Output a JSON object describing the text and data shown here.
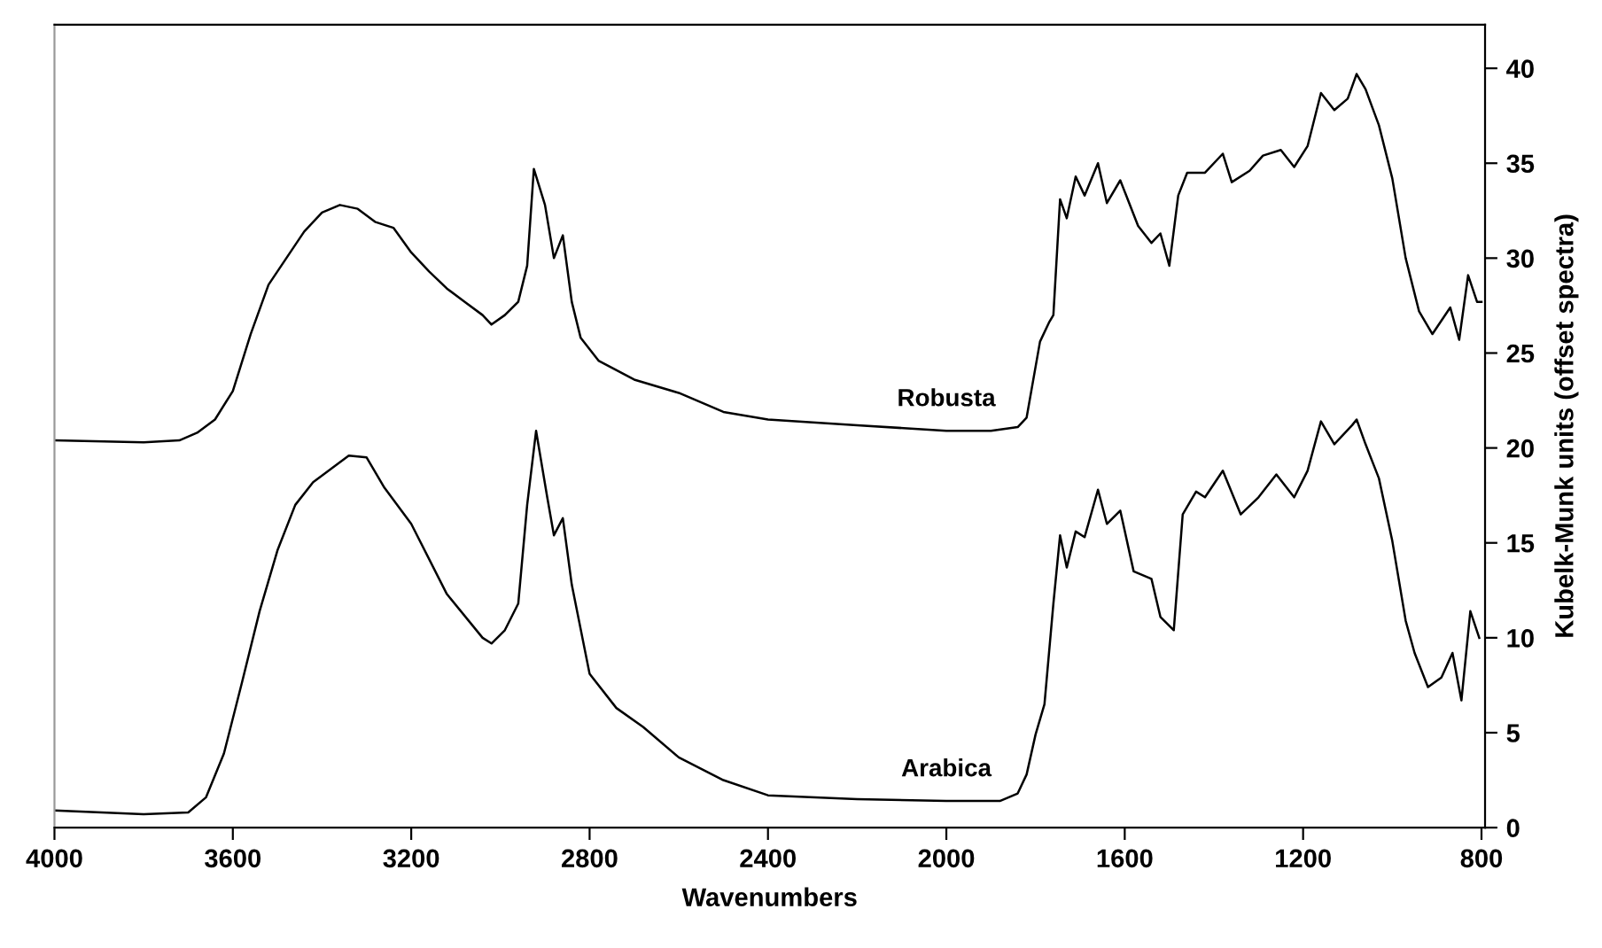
{
  "chart_data": {
    "type": "line",
    "xlabel": "Wavenumbers",
    "ylabel": "Kubelk-Munk units (offset spectra)",
    "xlim": [
      4000,
      792
    ],
    "ylim": [
      0,
      42.3
    ],
    "xticks": [
      4000,
      3600,
      3200,
      2800,
      2400,
      2000,
      1600,
      1200,
      800
    ],
    "yticks": [
      0,
      5,
      10,
      15,
      20,
      25,
      30,
      35,
      40
    ],
    "grid": false,
    "legend": false,
    "marker": "none",
    "line_style": "solid",
    "series": [
      {
        "name": "Robusta",
        "color": "#000000",
        "x": [
          4000,
          3800,
          3720,
          3680,
          3640,
          3600,
          3560,
          3520,
          3480,
          3440,
          3400,
          3360,
          3320,
          3280,
          3240,
          3200,
          3160,
          3120,
          3080,
          3040,
          3020,
          2990,
          2960,
          2940,
          2925,
          2900,
          2880,
          2860,
          2840,
          2820,
          2780,
          2700,
          2600,
          2500,
          2400,
          2200,
          2000,
          1900,
          1840,
          1820,
          1790,
          1770,
          1760,
          1745,
          1730,
          1710,
          1690,
          1660,
          1640,
          1610,
          1570,
          1540,
          1520,
          1500,
          1480,
          1460,
          1420,
          1380,
          1360,
          1320,
          1290,
          1250,
          1220,
          1190,
          1160,
          1130,
          1100,
          1080,
          1060,
          1030,
          1000,
          970,
          940,
          910,
          870,
          850,
          830,
          810,
          800
        ],
        "values": [
          20.4,
          20.3,
          20.4,
          20.8,
          21.5,
          23.0,
          26.0,
          28.6,
          30.0,
          31.4,
          32.4,
          32.8,
          32.6,
          31.9,
          31.6,
          30.3,
          29.3,
          28.4,
          27.7,
          27.0,
          26.5,
          27.0,
          27.7,
          29.6,
          34.7,
          32.8,
          30.0,
          31.2,
          27.7,
          25.8,
          24.6,
          23.6,
          22.9,
          21.9,
          21.5,
          21.2,
          20.9,
          20.9,
          21.1,
          21.6,
          25.6,
          26.6,
          27.0,
          33.1,
          32.1,
          34.3,
          33.3,
          35.0,
          32.9,
          34.1,
          31.7,
          30.8,
          31.3,
          29.6,
          33.3,
          34.5,
          34.5,
          35.5,
          34.0,
          34.6,
          35.4,
          35.7,
          34.8,
          35.9,
          38.7,
          37.8,
          38.4,
          39.7,
          38.9,
          37.0,
          34.2,
          30.0,
          27.2,
          26.0,
          27.4,
          25.7,
          29.1,
          27.7,
          27.7
        ]
      },
      {
        "name": "Arabica",
        "color": "#000000",
        "x": [
          4000,
          3800,
          3700,
          3660,
          3620,
          3580,
          3540,
          3500,
          3460,
          3420,
          3380,
          3340,
          3300,
          3260,
          3200,
          3120,
          3040,
          3020,
          2990,
          2960,
          2940,
          2920,
          2895,
          2880,
          2860,
          2840,
          2800,
          2740,
          2680,
          2600,
          2500,
          2400,
          2200,
          2000,
          1880,
          1840,
          1820,
          1800,
          1780,
          1760,
          1745,
          1730,
          1710,
          1690,
          1660,
          1640,
          1610,
          1580,
          1540,
          1520,
          1490,
          1470,
          1440,
          1420,
          1380,
          1340,
          1300,
          1260,
          1220,
          1190,
          1160,
          1130,
          1090,
          1080,
          1060,
          1030,
          1000,
          970,
          950,
          920,
          890,
          865,
          845,
          825,
          805
        ],
        "values": [
          0.9,
          0.7,
          0.8,
          1.6,
          3.9,
          7.6,
          11.4,
          14.6,
          17.0,
          18.2,
          18.9,
          19.6,
          19.5,
          17.9,
          16.0,
          12.3,
          10.0,
          9.7,
          10.4,
          11.8,
          17.0,
          20.9,
          17.4,
          15.4,
          16.3,
          12.8,
          8.1,
          6.3,
          5.3,
          3.7,
          2.5,
          1.7,
          1.5,
          1.4,
          1.4,
          1.8,
          2.8,
          4.9,
          6.5,
          11.8,
          15.4,
          13.7,
          15.6,
          15.3,
          17.8,
          16.0,
          16.7,
          13.5,
          13.1,
          11.1,
          10.4,
          16.5,
          17.7,
          17.4,
          18.8,
          16.5,
          17.4,
          18.6,
          17.4,
          18.8,
          21.4,
          20.2,
          21.2,
          21.5,
          20.2,
          18.4,
          15.1,
          10.9,
          9.2,
          7.4,
          7.9,
          9.2,
          6.7,
          11.4,
          10.0
        ]
      }
    ]
  }
}
